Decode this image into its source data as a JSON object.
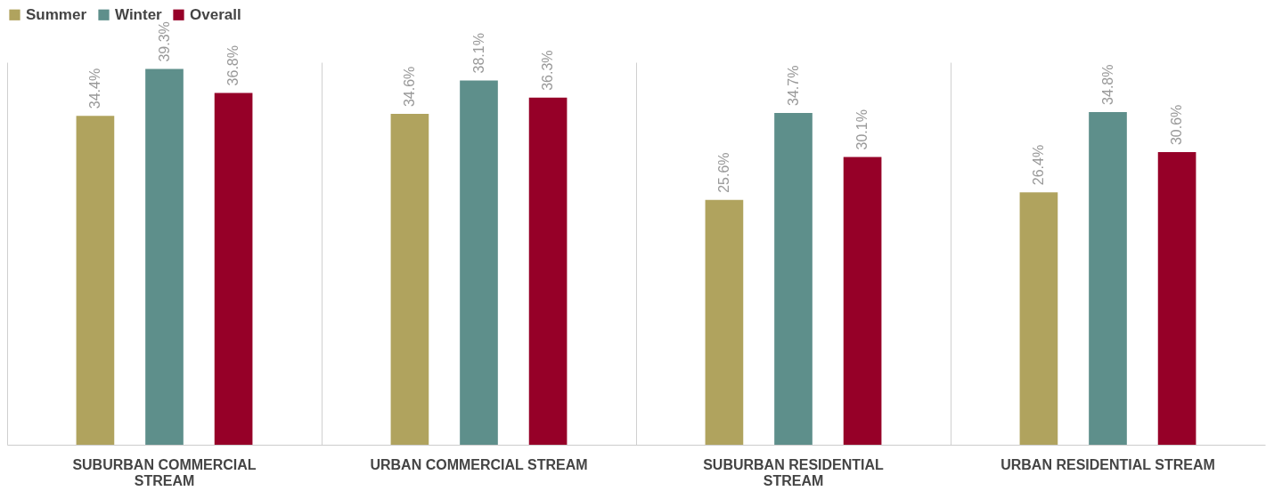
{
  "chart_data": {
    "type": "bar",
    "categories": [
      "SUBURBAN COMMERCIAL STREAM",
      "URBAN COMMERCIAL STREAM",
      "SUBURBAN RESIDENTIAL STREAM",
      "URBAN RESIDENTIAL STREAM"
    ],
    "series": [
      {
        "name": "Summer",
        "color": "#b0a35e",
        "values": [
          34.4,
          34.6,
          25.6,
          26.4
        ],
        "value_labels": [
          "34.4%",
          "34.6%",
          "25.6%",
          "26.4%"
        ]
      },
      {
        "name": "Winter",
        "color": "#5e8f8b",
        "values": [
          39.3,
          38.1,
          34.7,
          34.8
        ],
        "value_labels": [
          "39.3%",
          "38.1%",
          "34.7%",
          "34.8%"
        ]
      },
      {
        "name": "Overall",
        "color": "#960028",
        "values": [
          36.8,
          36.3,
          30.1,
          30.6
        ],
        "value_labels": [
          "36.8%",
          "36.3%",
          "30.1%",
          "30.6%"
        ]
      }
    ],
    "legend": "top",
    "grid": "x",
    "tick_labels": "x"
  }
}
